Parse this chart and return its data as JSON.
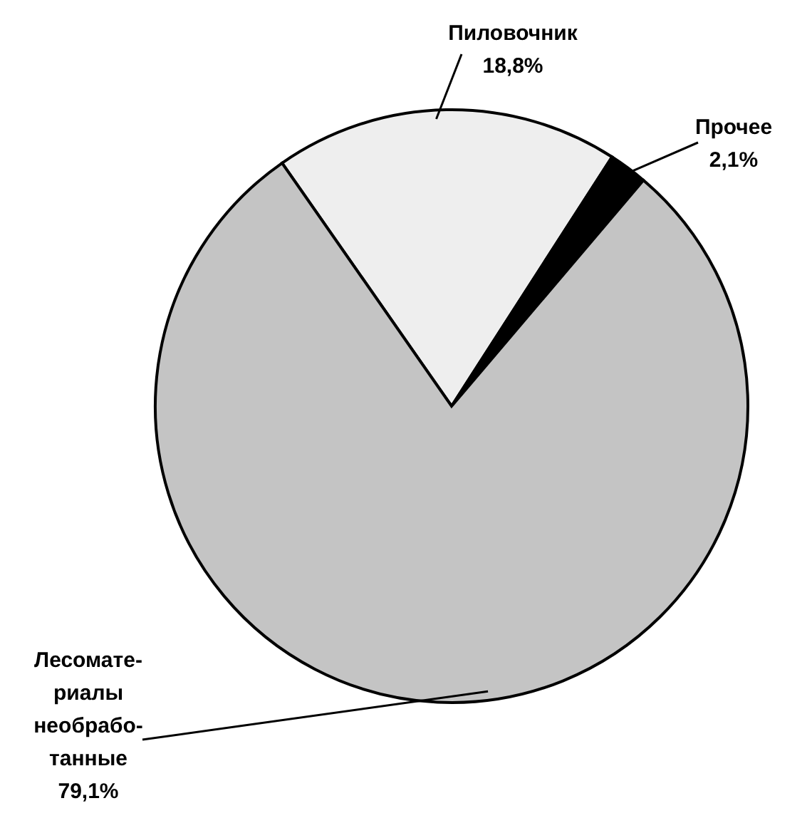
{
  "chart_data": {
    "type": "pie",
    "categories": [
      "Пиловочник",
      "Прочее",
      "Лесомате-\nриалы\nнеобрабо-\nтанные"
    ],
    "values": [
      18.8,
      2.1,
      79.1
    ],
    "colors": [
      "#eeeeee",
      "#000000",
      "#c4c4c4"
    ],
    "value_labels": [
      "18,8%",
      "2,1%",
      "79,1%"
    ]
  }
}
